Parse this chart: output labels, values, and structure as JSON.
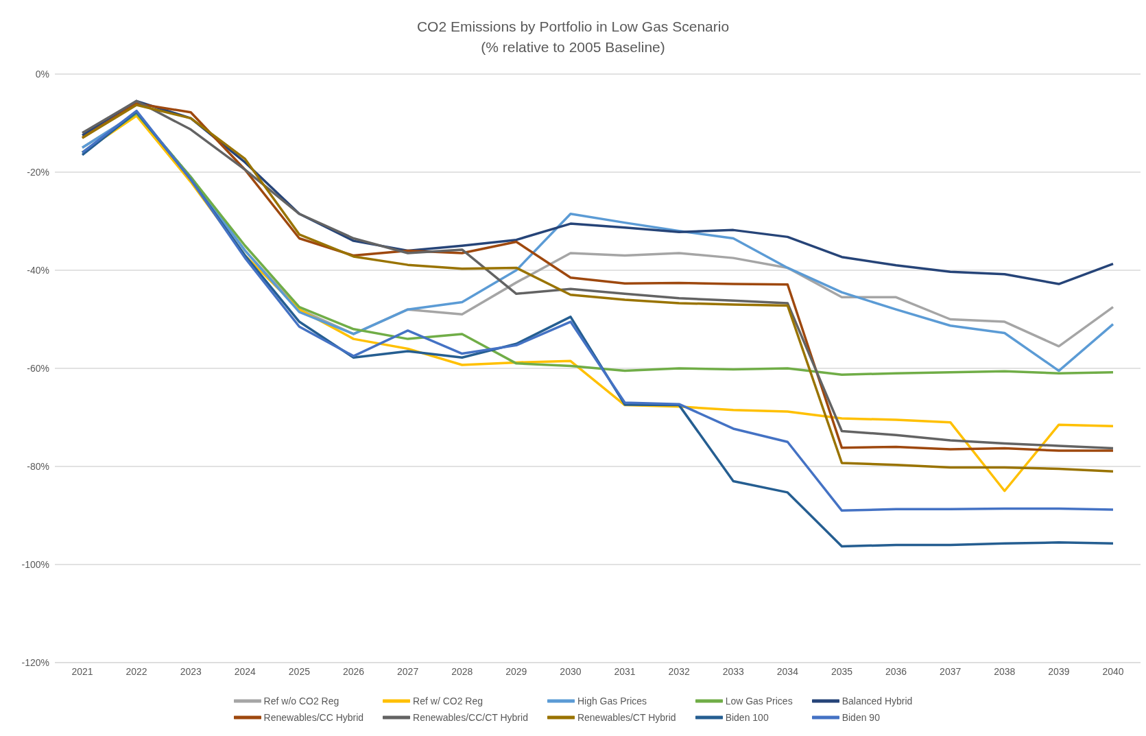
{
  "chart_data": {
    "type": "line",
    "title": "CO2 Emissions by Portfolio in Low Gas Scenario",
    "subtitle": "(% relative to 2005 Baseline)",
    "categories": [
      "2021",
      "2022",
      "2023",
      "2024",
      "2025",
      "2026",
      "2027",
      "2028",
      "2029",
      "2030",
      "2031",
      "2032",
      "2033",
      "2034",
      "2035",
      "2036",
      "2037",
      "2038",
      "2039",
      "2040"
    ],
    "ylim": [
      -120,
      0
    ],
    "yticks": [
      {
        "value": -120,
        "label": "-120%"
      },
      {
        "value": -100,
        "label": "-100%"
      },
      {
        "value": -80,
        "label": "-80%"
      },
      {
        "value": -60,
        "label": "-60%"
      },
      {
        "value": -40,
        "label": "-40%"
      },
      {
        "value": -20,
        "label": "-20%"
      },
      {
        "value": 0,
        "label": "0%"
      }
    ],
    "grid": "y",
    "legend": "bottom",
    "series": [
      {
        "name": "Ref w/o CO2 Reg",
        "color": "#a5a5a5",
        "values": [
          -15,
          -8,
          -21,
          -36,
          -48,
          -53,
          -48,
          -49,
          -42.5,
          -36.5,
          -37,
          -36.5,
          -37.5,
          -39.5,
          -45.5,
          -45.5,
          -50,
          -50.5,
          -55.5,
          -47.5
        ]
      },
      {
        "name": "Ref w/ CO2 Reg",
        "color": "#ffc000",
        "values": [
          -16,
          -8.5,
          -22,
          -37,
          -48,
          -54,
          -56,
          -59.3,
          -58.8,
          -58.5,
          -67.5,
          -67.8,
          -68.5,
          -68.8,
          -70.2,
          -70.5,
          -71,
          -85,
          -71.5,
          -71.8
        ]
      },
      {
        "name": "High Gas Prices",
        "color": "#5b9bd5",
        "values": [
          -15,
          -8,
          -21,
          -36,
          -48.5,
          -53,
          -48,
          -46.5,
          -40,
          -28.5,
          -30.3,
          -32,
          -33.5,
          -39.5,
          -44.5,
          -48,
          -51.3,
          -52.8,
          -60.5,
          -51
        ]
      },
      {
        "name": "Low Gas Prices",
        "color": "#70ad47",
        "values": [
          -16,
          -8,
          -21,
          -35,
          -47.5,
          -52,
          -54,
          -53,
          -59,
          -59.5,
          -60.5,
          -60,
          -60.2,
          -60,
          -61.3,
          -61,
          -60.8,
          -60.6,
          -61,
          -60.8
        ]
      },
      {
        "name": "Balanced Hybrid",
        "color": "#264478",
        "values": [
          -12.5,
          -5.5,
          -9,
          -18,
          -28.5,
          -34,
          -36,
          -35,
          -33.8,
          -30.5,
          -31.3,
          -32.2,
          -31.8,
          -33.2,
          -37.3,
          -39,
          -40.3,
          -40.8,
          -42.8,
          -38.7
        ]
      },
      {
        "name": "Renewables/CC Hybrid",
        "color": "#9e480e",
        "values": [
          -13,
          -6,
          -7.8,
          -19.5,
          -33.5,
          -37,
          -36,
          -36.5,
          -34.2,
          -41.5,
          -42.7,
          -42.6,
          -42.8,
          -42.9,
          -76.2,
          -76,
          -76.5,
          -76.3,
          -76.8,
          -76.8
        ]
      },
      {
        "name": "Renewables/CC/CT Hybrid",
        "color": "#636363",
        "values": [
          -12,
          -5.5,
          -11.3,
          -19.5,
          -28.5,
          -33.5,
          -36.5,
          -35.8,
          -44.8,
          -43.8,
          -44.8,
          -45.7,
          -46.2,
          -46.7,
          -72.8,
          -73.6,
          -74.7,
          -75.3,
          -75.8,
          -76.3
        ]
      },
      {
        "name": "Renewables/CT Hybrid",
        "color": "#997300",
        "values": [
          -13,
          -6.3,
          -9,
          -17.3,
          -32.7,
          -37.2,
          -38.9,
          -39.7,
          -39.5,
          -45,
          -46,
          -46.7,
          -47,
          -47.2,
          -79.3,
          -79.7,
          -80.2,
          -80.2,
          -80.5,
          -81
        ]
      },
      {
        "name": "Biden 100",
        "color": "#255e91",
        "values": [
          -16.5,
          -7.7,
          -21.5,
          -37,
          -50.5,
          -57.8,
          -56.5,
          -57.8,
          -55,
          -49.5,
          -67.4,
          -67.5,
          -83,
          -85.3,
          -96.3,
          -96,
          -96,
          -95.7,
          -95.5,
          -95.7
        ]
      },
      {
        "name": "Biden 90",
        "color": "#4472c4",
        "values": [
          -16,
          -7.5,
          -21.5,
          -37.5,
          -51.5,
          -57.5,
          -52.3,
          -57,
          -55.3,
          -50.5,
          -67,
          -67.3,
          -72.3,
          -75,
          -89,
          -88.7,
          -88.7,
          -88.6,
          -88.6,
          -88.8
        ]
      }
    ]
  }
}
